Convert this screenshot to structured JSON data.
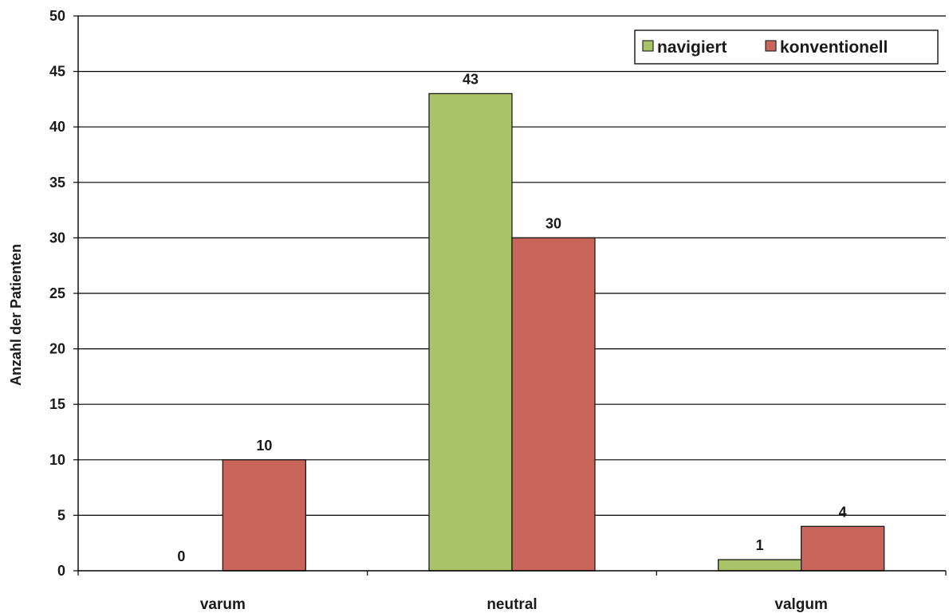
{
  "chart_data": {
    "type": "bar",
    "title": "",
    "xlabel": "",
    "ylabel": "Anzahl der Patienten",
    "categories": [
      "varum",
      "neutral",
      "valgum"
    ],
    "series": [
      {
        "name": "navigiert",
        "values": [
          0,
          43,
          1
        ],
        "color": "#a9c466"
      },
      {
        "name": "konventionell",
        "values": [
          10,
          30,
          4
        ],
        "color": "#c9655b"
      }
    ],
    "ylim": [
      0,
      50
    ],
    "yticks": [
      0,
      5,
      10,
      15,
      20,
      25,
      30,
      35,
      40,
      45,
      50
    ],
    "data_labels": true,
    "grid": true,
    "legend_position": "top-right"
  }
}
